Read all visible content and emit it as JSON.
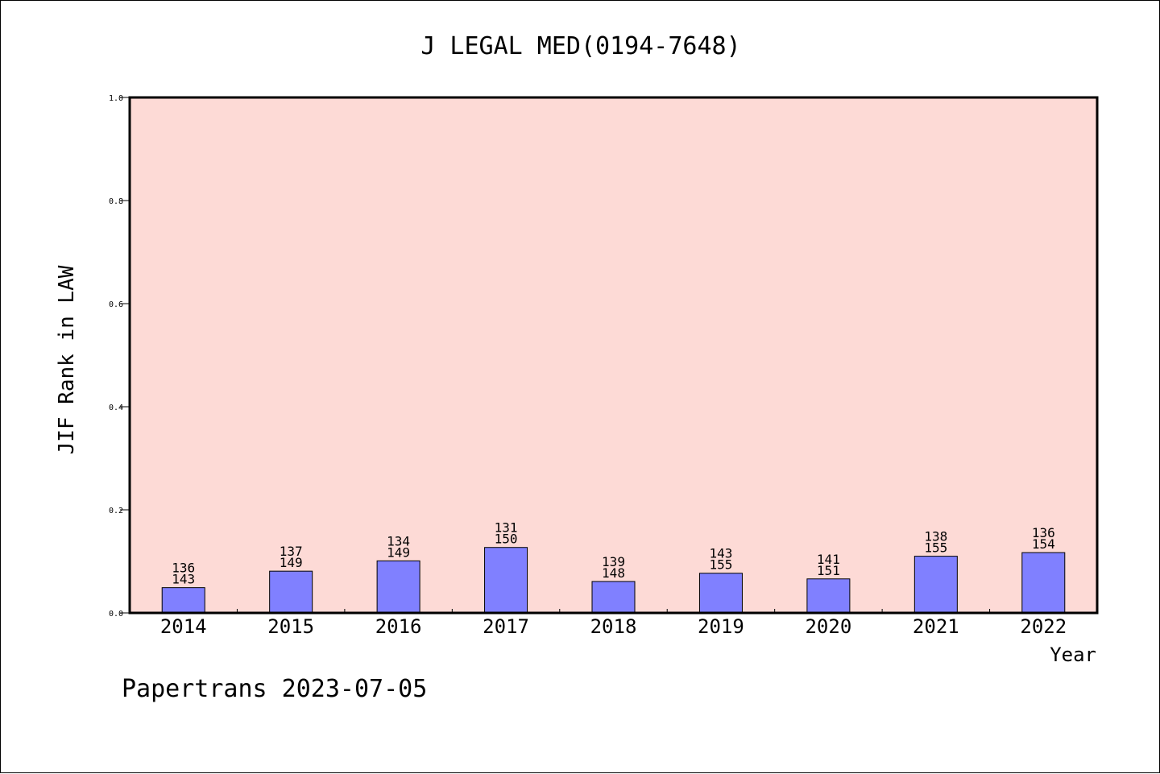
{
  "chart_data": {
    "type": "bar",
    "title": "J LEGAL MED(0194-7648)",
    "xlabel": "Year",
    "ylabel": "JIF Rank in LAW",
    "ylim": [
      0,
      1.0
    ],
    "yticks": [
      "0.0",
      "0.2",
      "0.4",
      "0.6",
      "0.8",
      "1.0"
    ],
    "categories": [
      "2014",
      "2015",
      "2016",
      "2017",
      "2018",
      "2019",
      "2020",
      "2021",
      "2022"
    ],
    "values": [
      0.049,
      0.081,
      0.101,
      0.127,
      0.061,
      0.077,
      0.066,
      0.11,
      0.117
    ],
    "rank": [
      "136",
      "137",
      "134",
      "131",
      "139",
      "143",
      "141",
      "138",
      "136"
    ],
    "total": [
      "143",
      "149",
      "149",
      "150",
      "148",
      "155",
      "151",
      "155",
      "154"
    ],
    "grid": false,
    "colors": {
      "plot_background": "#fddad6",
      "bar_fill": "#8080ff",
      "bar_stroke": "#000000"
    }
  },
  "footer": "Papertrans 2023-07-05"
}
